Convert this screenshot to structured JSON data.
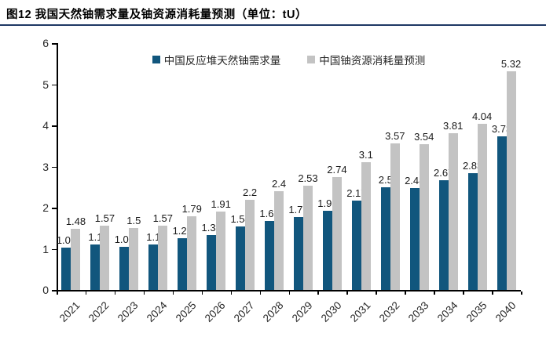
{
  "header": {
    "title": "图12 我国天然铀需求量及铀资源消耗量预测（单位：tU）"
  },
  "colors": {
    "demand": "#11567D",
    "forecast": "#C3C3C3",
    "divider": "#1F3864",
    "axis": "#000000"
  },
  "chart_data": {
    "type": "bar",
    "title": "图12 我国天然铀需求量及铀资源消耗量预测（单位：tU）",
    "unit": "tU",
    "categories": [
      "2021",
      "2022",
      "2023",
      "2024",
      "2025",
      "2026",
      "2027",
      "2028",
      "2029",
      "2030",
      "2031",
      "2032",
      "2033",
      "2034",
      "2035",
      "2040"
    ],
    "series": [
      {
        "name": "中国反应堆天然铀需求量",
        "color_key": "demand",
        "values": [
          1.03,
          1.1,
          1.05,
          1.1,
          1.25,
          1.34,
          1.54,
          1.68,
          1.77,
          1.92,
          2.17,
          2.5,
          2.48,
          2.67,
          2.83,
          3.73
        ]
      },
      {
        "name": "中国铀资源消耗量预测",
        "color_key": "forecast",
        "values": [
          1.48,
          1.57,
          1.5,
          1.57,
          1.79,
          1.91,
          2.2,
          2.4,
          2.53,
          2.74,
          3.1,
          3.57,
          3.54,
          3.81,
          4.04,
          5.32
        ]
      }
    ],
    "xlabel": "",
    "ylabel": "",
    "ylim": [
      0,
      6
    ],
    "yticks": [
      0,
      1,
      2,
      3,
      4,
      5,
      6
    ],
    "grid": false,
    "legend_position": "top-center",
    "data_labels": true
  }
}
